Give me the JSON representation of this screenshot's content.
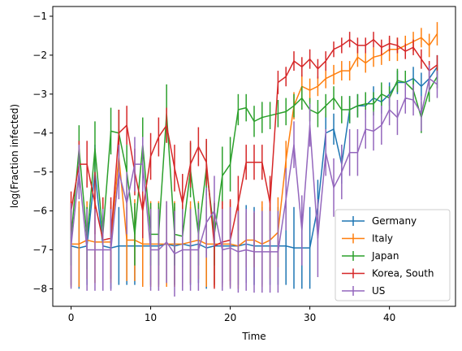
{
  "chart_data": {
    "type": "line",
    "xlabel": "Time",
    "ylabel": "log(Fraction infected)",
    "xlim": [
      -2.3,
      48.3
    ],
    "ylim": [
      -8.45,
      -0.75
    ],
    "x_ticks": [
      0,
      10,
      20,
      30,
      40
    ],
    "y_ticks": [
      -8,
      -7,
      -6,
      -5,
      -4,
      -3,
      -2,
      -1
    ],
    "x_tick_labels": [
      "0",
      "10",
      "20",
      "30",
      "40"
    ],
    "y_tick_labels": [
      "−8",
      "−7",
      "−6",
      "−5",
      "−4",
      "−3",
      "−2",
      "−1"
    ],
    "grid": false,
    "legend_position": "bottom-right",
    "error_bars": true,
    "series": [
      {
        "name": "Germany",
        "color": "#1f77b4",
        "x": [
          0,
          1,
          2,
          3,
          4,
          5,
          6,
          7,
          8,
          9,
          10,
          11,
          12,
          13,
          14,
          15,
          16,
          17,
          18,
          19,
          20,
          21,
          22,
          23,
          24,
          25,
          26,
          27,
          28,
          29,
          30,
          31,
          32,
          33,
          34,
          35,
          36,
          37,
          38,
          39,
          40,
          41,
          42,
          43,
          44,
          45,
          46
        ],
        "y": [
          -6.9,
          -6.95,
          -6.9,
          -5.0,
          -6.9,
          -6.95,
          -6.9,
          -6.9,
          -6.9,
          -6.9,
          -6.9,
          -6.9,
          -6.85,
          -6.9,
          -6.85,
          -6.9,
          -6.85,
          -6.95,
          -6.9,
          -6.9,
          -6.9,
          -6.9,
          -6.85,
          -6.9,
          -6.9,
          -6.9,
          -6.9,
          -6.9,
          -6.95,
          -6.95,
          -6.95,
          -5.9,
          -4.0,
          -3.9,
          -4.8,
          -3.4,
          -3.3,
          -3.3,
          -3.1,
          -3.2,
          -3.0,
          -2.7,
          -2.7,
          -2.6,
          -2.8,
          -2.6,
          -2.3
        ],
        "err": [
          1.0,
          1.05,
          1.0,
          0.7,
          1.0,
          1.05,
          1.0,
          1.0,
          1.0,
          1.0,
          1.0,
          1.0,
          1.0,
          1.0,
          1.0,
          1.0,
          1.0,
          1.05,
          1.0,
          1.0,
          1.0,
          1.0,
          1.0,
          1.0,
          1.0,
          1.0,
          1.0,
          1.0,
          1.05,
          1.05,
          1.05,
          0.7,
          0.5,
          0.4,
          0.5,
          0.35,
          0.3,
          0.3,
          0.3,
          0.3,
          0.3,
          0.3,
          0.3,
          0.3,
          0.35,
          0.3,
          0.3
        ]
      },
      {
        "name": "Italy",
        "color": "#ff7f0e",
        "x": [
          0,
          1,
          2,
          3,
          4,
          5,
          6,
          7,
          8,
          9,
          10,
          11,
          12,
          13,
          14,
          15,
          16,
          17,
          18,
          19,
          20,
          21,
          22,
          23,
          24,
          25,
          26,
          27,
          28,
          29,
          30,
          31,
          32,
          33,
          34,
          35,
          36,
          37,
          38,
          39,
          40,
          41,
          42,
          43,
          44,
          45,
          46
        ],
        "y": [
          -6.85,
          -6.85,
          -6.75,
          -6.8,
          -6.8,
          -6.8,
          -4.6,
          -6.75,
          -6.75,
          -6.85,
          -6.85,
          -6.85,
          -6.85,
          -6.85,
          -6.85,
          -6.8,
          -6.75,
          -6.85,
          -6.85,
          -6.85,
          -6.85,
          -6.9,
          -6.75,
          -6.75,
          -6.85,
          -6.75,
          -6.55,
          -4.7,
          -3.3,
          -2.8,
          -2.9,
          -2.8,
          -2.6,
          -2.5,
          -2.4,
          -2.4,
          -2.05,
          -2.2,
          -2.05,
          -2.0,
          -1.85,
          -1.85,
          -1.75,
          -1.65,
          -1.55,
          -1.75,
          -1.45
        ],
        "err": [
          1.1,
          1.1,
          1.0,
          1.05,
          1.05,
          1.05,
          0.7,
          1.05,
          1.05,
          1.1,
          1.1,
          1.1,
          1.1,
          1.1,
          1.1,
          1.05,
          1.0,
          1.1,
          1.1,
          1.1,
          1.1,
          1.1,
          0.7,
          0.7,
          1.1,
          1.0,
          0.9,
          0.5,
          0.35,
          0.3,
          0.3,
          0.25,
          0.25,
          0.25,
          0.25,
          0.25,
          0.25,
          0.25,
          0.25,
          0.25,
          0.3,
          0.3,
          0.25,
          0.25,
          0.25,
          0.3,
          0.3
        ]
      },
      {
        "name": "Japan",
        "color": "#2ca02c",
        "x": [
          0,
          1,
          2,
          3,
          4,
          5,
          6,
          7,
          8,
          9,
          10,
          11,
          12,
          13,
          14,
          15,
          16,
          17,
          18,
          19,
          20,
          21,
          22,
          23,
          24,
          25,
          26,
          27,
          28,
          29,
          30,
          31,
          32,
          33,
          34,
          35,
          36,
          37,
          38,
          39,
          40,
          41,
          42,
          43,
          44,
          45,
          46
        ],
        "y": [
          -6.7,
          -4.4,
          -6.7,
          -4.4,
          -6.6,
          -3.95,
          -4.0,
          -5.0,
          -6.6,
          -4.3,
          -6.6,
          -6.6,
          -3.5,
          -6.6,
          -6.65,
          -4.95,
          -6.6,
          -4.9,
          -6.6,
          -5.1,
          -4.8,
          -3.4,
          -3.35,
          -3.7,
          -3.6,
          -3.55,
          -3.5,
          -3.45,
          -3.3,
          -3.1,
          -3.4,
          -3.5,
          -3.3,
          -3.1,
          -3.4,
          -3.4,
          -3.3,
          -3.25,
          -3.25,
          -3.0,
          -3.1,
          -2.65,
          -2.7,
          -2.9,
          -3.6,
          -2.9,
          -2.55
        ],
        "err": [
          0.7,
          0.6,
          0.8,
          0.7,
          0.7,
          0.6,
          0.6,
          0.7,
          0.8,
          0.7,
          0.8,
          0.8,
          0.75,
          0.8,
          0.8,
          0.7,
          0.8,
          0.7,
          0.8,
          0.75,
          0.7,
          0.4,
          0.35,
          0.4,
          0.4,
          0.35,
          0.35,
          0.35,
          0.3,
          0.3,
          0.3,
          0.35,
          0.3,
          0.3,
          0.35,
          0.35,
          0.3,
          0.3,
          0.3,
          0.3,
          0.3,
          0.3,
          0.3,
          0.3,
          0.4,
          0.3,
          0.3
        ]
      },
      {
        "name": "Korea, South",
        "color": "#d62728",
        "x": [
          0,
          1,
          2,
          3,
          4,
          5,
          6,
          7,
          8,
          9,
          10,
          11,
          12,
          13,
          14,
          15,
          16,
          17,
          18,
          19,
          20,
          21,
          22,
          23,
          24,
          25,
          26,
          27,
          28,
          29,
          30,
          31,
          32,
          33,
          34,
          35,
          36,
          37,
          38,
          39,
          40,
          41,
          42,
          43,
          44,
          45,
          46
        ],
        "y": [
          -6.0,
          -4.8,
          -4.8,
          -5.8,
          -6.75,
          -6.7,
          -4.0,
          -3.8,
          -5.0,
          -6.0,
          -4.6,
          -4.1,
          -3.8,
          -4.9,
          -5.8,
          -4.8,
          -4.35,
          -4.75,
          -6.9,
          -6.8,
          -6.75,
          -5.8,
          -4.75,
          -4.75,
          -4.75,
          -5.8,
          -2.7,
          -2.55,
          -2.15,
          -2.3,
          -2.1,
          -2.35,
          -2.15,
          -1.85,
          -1.75,
          -1.6,
          -1.75,
          -1.75,
          -1.6,
          -1.8,
          -1.7,
          -1.75,
          -1.9,
          -1.8,
          -2.1,
          -2.4,
          -2.25
        ],
        "err": [
          0.5,
          0.6,
          0.6,
          0.8,
          1.1,
          1.05,
          0.6,
          0.5,
          0.6,
          0.7,
          0.6,
          0.5,
          0.45,
          0.6,
          0.75,
          0.6,
          0.5,
          0.6,
          1.1,
          1.05,
          1.05,
          0.7,
          0.45,
          0.45,
          0.45,
          0.7,
          0.3,
          0.25,
          0.25,
          0.25,
          0.25,
          0.25,
          0.25,
          0.2,
          0.2,
          0.2,
          0.2,
          0.2,
          0.2,
          0.2,
          0.2,
          0.2,
          0.2,
          0.2,
          0.25,
          0.25,
          0.25
        ]
      },
      {
        "name": "US",
        "color": "#9467bd",
        "x": [
          0,
          1,
          2,
          3,
          4,
          5,
          6,
          7,
          8,
          9,
          10,
          11,
          12,
          13,
          14,
          15,
          16,
          17,
          18,
          19,
          20,
          21,
          22,
          23,
          24,
          25,
          26,
          27,
          28,
          29,
          30,
          31,
          32,
          33,
          34,
          35,
          36,
          37,
          38,
          39,
          40,
          41,
          42,
          43,
          44,
          45,
          46
        ],
        "y": [
          -6.9,
          -5.0,
          -7.0,
          -7.0,
          -7.0,
          -7.0,
          -5.0,
          -5.8,
          -4.8,
          -4.8,
          -7.0,
          -7.0,
          -6.8,
          -7.1,
          -7.0,
          -7.0,
          -7.0,
          -6.3,
          -6.0,
          -7.0,
          -6.95,
          -7.05,
          -7.0,
          -7.05,
          -7.05,
          -7.05,
          -7.05,
          -5.7,
          -4.3,
          -6.5,
          -3.8,
          -6.7,
          -4.5,
          -5.4,
          -5.0,
          -4.5,
          -4.5,
          -3.9,
          -3.95,
          -3.8,
          -3.4,
          -3.6,
          -3.1,
          -3.15,
          -3.5,
          -2.6,
          -2.75
        ],
        "err": [
          1.1,
          0.7,
          1.05,
          1.05,
          1.05,
          1.05,
          0.7,
          0.8,
          0.7,
          0.7,
          1.05,
          1.05,
          1.05,
          1.1,
          1.05,
          1.05,
          1.05,
          0.9,
          0.9,
          1.05,
          1.05,
          1.05,
          1.05,
          1.05,
          1.05,
          1.05,
          1.05,
          0.8,
          0.6,
          0.9,
          0.55,
          1.0,
          0.6,
          0.75,
          0.7,
          0.6,
          0.6,
          0.5,
          0.5,
          0.5,
          0.4,
          0.45,
          0.4,
          0.4,
          0.45,
          0.35,
          0.35
        ]
      }
    ]
  }
}
